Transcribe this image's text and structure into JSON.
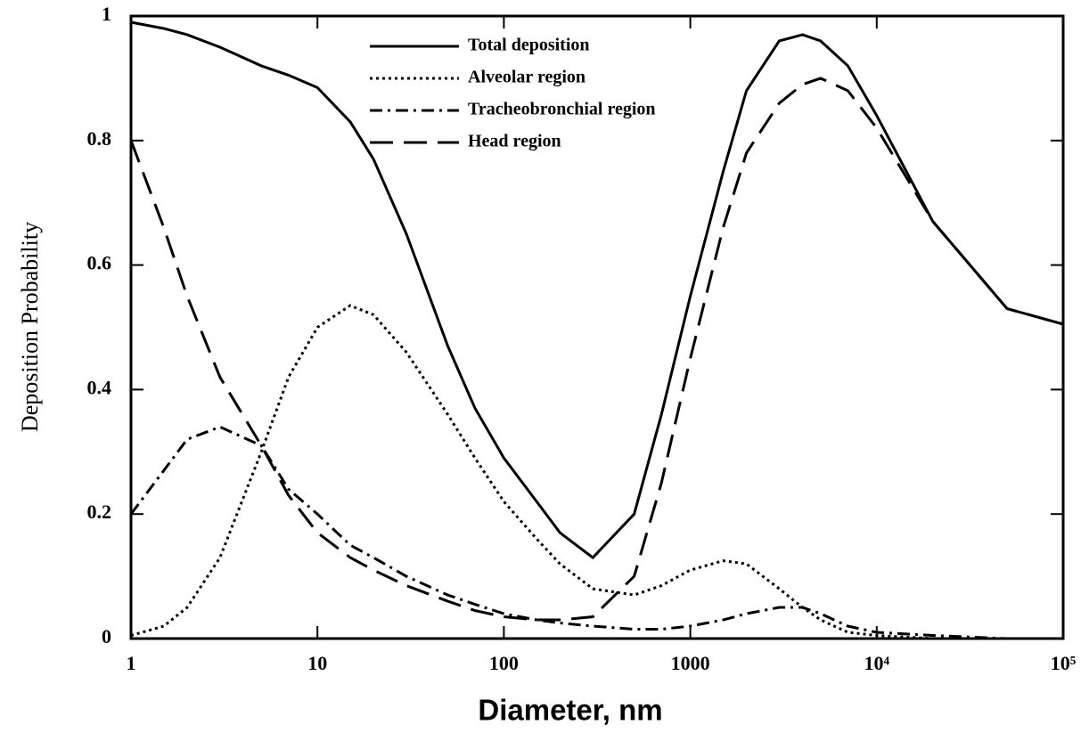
{
  "chart_data": {
    "type": "line",
    "x_label": "Diameter, nm",
    "y_label": "Deposition Probability",
    "x_scale": "log",
    "legend": "top",
    "x": [
      1,
      1.5,
      2,
      3,
      5,
      7,
      10,
      15,
      20,
      30,
      50,
      70,
      100,
      150,
      200,
      300,
      500,
      700,
      1000,
      1500,
      2000,
      3000,
      4000,
      5000,
      7000,
      10000,
      20000,
      50000,
      100000
    ],
    "series": [
      {
        "name": "Total deposition",
        "color": "#000000",
        "dash": "solid",
        "values": [
          0.99,
          0.98,
          0.97,
          0.95,
          0.92,
          0.905,
          0.885,
          0.83,
          0.77,
          0.65,
          0.47,
          0.37,
          0.29,
          0.22,
          0.17,
          0.13,
          0.2,
          0.36,
          0.55,
          0.75,
          0.88,
          0.96,
          0.97,
          0.96,
          0.92,
          0.84,
          0.67,
          0.53,
          0.505
        ]
      },
      {
        "name": "Alveolar region",
        "color": "#000000",
        "dash": "dotted",
        "values": [
          0.005,
          0.02,
          0.05,
          0.13,
          0.3,
          0.42,
          0.5,
          0.535,
          0.52,
          0.46,
          0.36,
          0.29,
          0.22,
          0.16,
          0.12,
          0.08,
          0.07,
          0.085,
          0.11,
          0.125,
          0.12,
          0.08,
          0.05,
          0.03,
          0.01,
          0.005,
          0,
          0,
          0
        ]
      },
      {
        "name": "Tracheobronchial region",
        "color": "#000000",
        "dash": "dashdot",
        "values": [
          0.2,
          0.27,
          0.32,
          0.34,
          0.31,
          0.24,
          0.2,
          0.15,
          0.13,
          0.1,
          0.07,
          0.055,
          0.04,
          0.03,
          0.025,
          0.02,
          0.015,
          0.015,
          0.02,
          0.03,
          0.04,
          0.05,
          0.05,
          0.04,
          0.02,
          0.01,
          0.005,
          0,
          0
        ]
      },
      {
        "name": "Head region",
        "color": "#000000",
        "dash": "dashed",
        "values": [
          0.8,
          0.66,
          0.55,
          0.42,
          0.31,
          0.23,
          0.17,
          0.13,
          0.11,
          0.085,
          0.06,
          0.045,
          0.035,
          0.03,
          0.03,
          0.035,
          0.1,
          0.25,
          0.45,
          0.66,
          0.78,
          0.86,
          0.89,
          0.9,
          0.88,
          0.82,
          0.67,
          0.53,
          0.505
        ]
      }
    ],
    "xlim": [
      1,
      100000
    ],
    "xticks": [
      1,
      10,
      100,
      1000,
      {
        "value": 10000,
        "label": "10⁴"
      },
      {
        "value": 100000,
        "label": "10⁵"
      }
    ],
    "ylim": [
      0,
      1
    ],
    "yticks": [
      0,
      0.2,
      0.4,
      0.6,
      0.8,
      1
    ]
  }
}
